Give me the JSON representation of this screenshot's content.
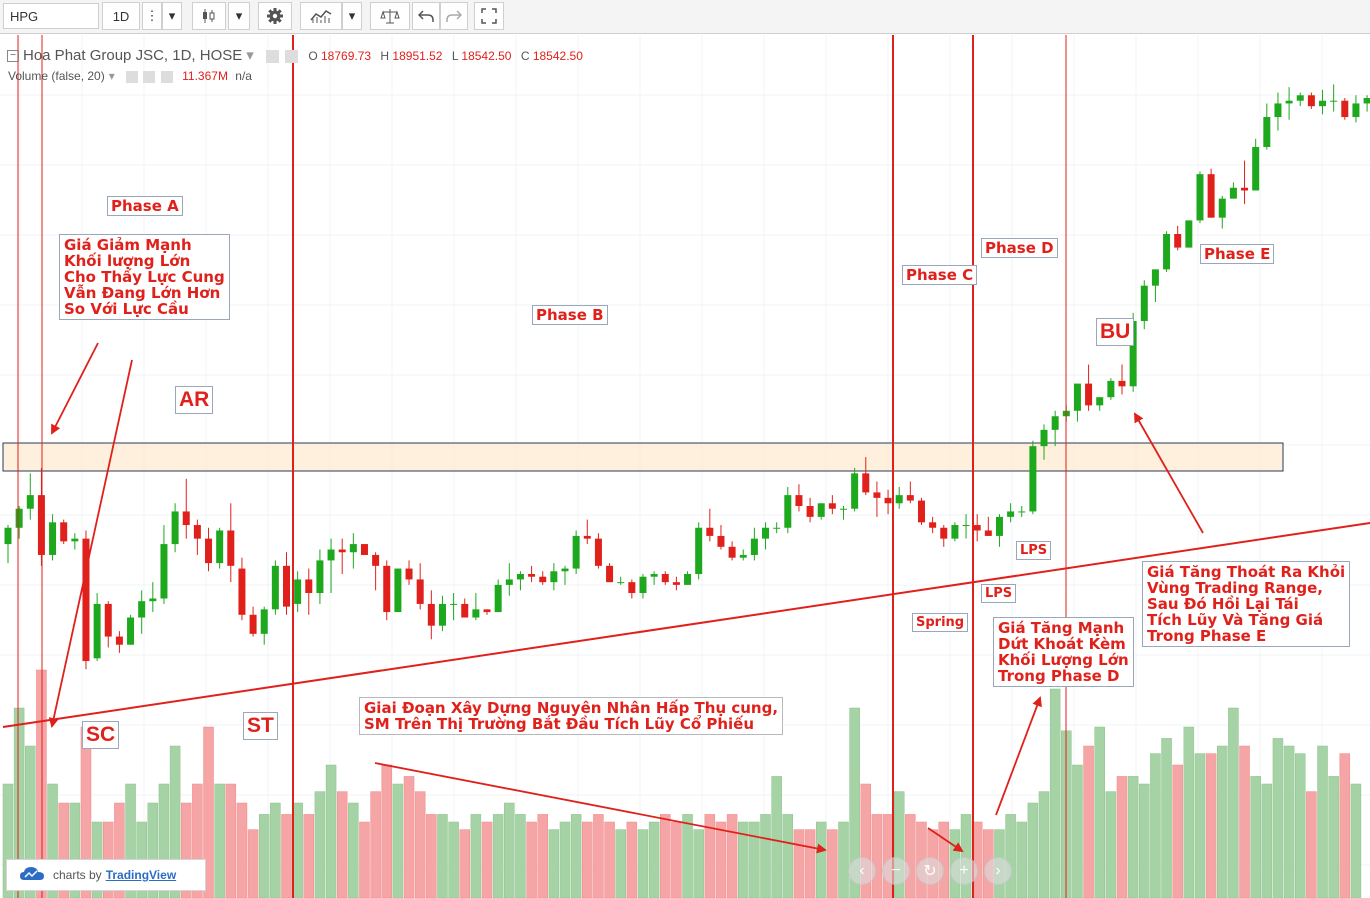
{
  "toolbar": {
    "symbol": "HPG",
    "interval": "1D",
    "more": "⋮",
    "dropdown": "▾"
  },
  "header": {
    "title": "Hoa Phat Group JSC, 1D, HOSE",
    "ohlc": {
      "o_label": "O",
      "o": "18769.73",
      "h_label": "H",
      "h": "18951.52",
      "l_label": "L",
      "l": "18542.50",
      "c_label": "C",
      "c": "18542.50"
    },
    "volume_label": "Volume (false, 20)",
    "volume_value": "11.367M",
    "volume_ma": "n/a"
  },
  "annotations": {
    "phase_a": "Phase A",
    "phase_a_note": "Giá Giảm Mạnh\nKhối lượng Lớn\nCho Thấy Lực Cung\nVẫn Đang Lớn Hơn\nSo Với Lực Cầu",
    "ar": "AR",
    "phase_b": "Phase B",
    "phase_c": "Phase C",
    "phase_d": "Phase D",
    "phase_e": "Phase E",
    "bu": "BU",
    "sc": "SC",
    "st": "ST",
    "lps1": "LPS",
    "lps2": "LPS",
    "spring": "Spring",
    "phase_b_note": "Giai Đoạn Xây Dựng Nguyên Nhân Hấp Thụ cung,\nSM Trên Thị Trường Bắt Đầu Tích Lũy Cổ Phiếu",
    "phase_d_note": "Giá Tăng Mạnh\nDứt Khoát Kèm\nKhối Lượng Lớn\nTrong Phase D",
    "phase_e_note": "Giá Tăng Thoát Ra Khỏi\nVùng Trading Range,\nSau Đó Hồi Lại Tái\nTích Lũy Và Tăng Giá\nTrong Phase E"
  },
  "footer": {
    "charts_by": "charts by",
    "tradingview": "TradingView"
  },
  "nav": [
    "‹",
    "−",
    "↻",
    "+",
    "›"
  ],
  "colors": {
    "up": "#1ea81e",
    "down": "#e0211b",
    "vol_up": "#a6d3a6",
    "vol_down": "#f5a5a5",
    "annotation": "#e0211b",
    "zone_fill": "#fdebd0"
  },
  "chart_data": {
    "type": "candlestick",
    "symbol": "HPG",
    "interval": "1D",
    "exchange": "HOSE",
    "candles": [
      [
        19050,
        19400,
        18700,
        19350
      ],
      [
        19350,
        19750,
        19150,
        19700
      ],
      [
        19700,
        20350,
        19500,
        19950
      ],
      [
        19950,
        20450,
        18650,
        18850
      ],
      [
        18850,
        19600,
        18750,
        19450
      ],
      [
        19450,
        19500,
        19050,
        19100
      ],
      [
        19100,
        19250,
        18950,
        19150
      ],
      [
        19150,
        19300,
        16750,
        16900
      ],
      [
        16950,
        18150,
        16900,
        17950
      ],
      [
        17950,
        18000,
        17150,
        17350
      ],
      [
        17350,
        17450,
        17050,
        17200
      ],
      [
        17200,
        17750,
        17200,
        17700
      ],
      [
        17700,
        18200,
        17400,
        18000
      ],
      [
        18000,
        18350,
        17800,
        18050
      ],
      [
        18050,
        19400,
        17950,
        19050
      ],
      [
        19050,
        19800,
        18900,
        19650
      ],
      [
        19650,
        20250,
        19150,
        19400
      ],
      [
        19400,
        19500,
        18850,
        19150
      ],
      [
        19150,
        19350,
        18550,
        18700
      ],
      [
        18700,
        19350,
        18600,
        19300
      ],
      [
        19300,
        19800,
        18350,
        18650
      ],
      [
        18600,
        18800,
        17650,
        17750
      ],
      [
        17750,
        17900,
        17350,
        17400
      ],
      [
        17400,
        17900,
        17200,
        17850
      ],
      [
        17850,
        18750,
        17750,
        18650
      ],
      [
        18650,
        18900,
        17750,
        17900
      ],
      [
        17950,
        18550,
        17800,
        18400
      ],
      [
        18400,
        18600,
        17750,
        18150
      ],
      [
        18150,
        18950,
        17950,
        18750
      ],
      [
        18750,
        19150,
        18150,
        18950
      ],
      [
        18950,
        19150,
        18500,
        18900
      ],
      [
        18900,
        19250,
        18600,
        19050
      ],
      [
        19050,
        19050,
        18850,
        18850
      ],
      [
        18850,
        18900,
        18200,
        18650
      ],
      [
        18650,
        18750,
        17650,
        17800
      ],
      [
        17800,
        18600,
        17800,
        18600
      ],
      [
        18600,
        18750,
        18300,
        18400
      ],
      [
        18400,
        18700,
        17850,
        17950
      ],
      [
        17950,
        18200,
        17300,
        17550
      ],
      [
        17550,
        18100,
        17450,
        17950
      ],
      [
        17950,
        18150,
        17650,
        17950
      ],
      [
        17950,
        18050,
        17700,
        17700
      ],
      [
        17700,
        18150,
        17650,
        17850
      ],
      [
        17850,
        17850,
        17750,
        17800
      ],
      [
        17800,
        18400,
        17800,
        18300
      ],
      [
        18300,
        18700,
        18100,
        18400
      ],
      [
        18400,
        18550,
        18200,
        18500
      ],
      [
        18500,
        18650,
        18350,
        18450
      ],
      [
        18450,
        18550,
        18300,
        18350
      ],
      [
        18350,
        18700,
        18200,
        18550
      ],
      [
        18550,
        18650,
        18300,
        18600
      ],
      [
        18600,
        19300,
        18500,
        19200
      ],
      [
        19200,
        19500,
        19050,
        19150
      ],
      [
        19150,
        19250,
        18600,
        18650
      ],
      [
        18650,
        18700,
        18350,
        18350
      ],
      [
        18350,
        18450,
        18300,
        18350
      ],
      [
        18350,
        18400,
        18050,
        18150
      ],
      [
        18150,
        18500,
        18050,
        18450
      ],
      [
        18450,
        18550,
        18300,
        18500
      ],
      [
        18500,
        18550,
        18300,
        18350
      ],
      [
        18350,
        18450,
        18200,
        18300
      ],
      [
        18300,
        18550,
        18300,
        18500
      ],
      [
        18500,
        19450,
        18400,
        19350
      ],
      [
        19350,
        19700,
        19100,
        19200
      ],
      [
        19200,
        19400,
        18950,
        19000
      ],
      [
        19000,
        19100,
        18750,
        18800
      ],
      [
        18800,
        18950,
        18750,
        18850
      ],
      [
        18850,
        19350,
        18750,
        19150
      ],
      [
        19150,
        19450,
        18950,
        19350
      ],
      [
        19350,
        19450,
        19250,
        19350
      ],
      [
        19350,
        20100,
        19250,
        19950
      ],
      [
        19950,
        20150,
        19650,
        19750
      ],
      [
        19750,
        19900,
        19450,
        19550
      ],
      [
        19550,
        19800,
        19500,
        19800
      ],
      [
        19800,
        19950,
        19600,
        19700
      ],
      [
        19700,
        19750,
        19500,
        19700
      ],
      [
        19700,
        20450,
        19650,
        20350
      ],
      [
        20350,
        20650,
        19950,
        20000
      ],
      [
        20000,
        20200,
        19550,
        19900
      ],
      [
        19900,
        20050,
        19600,
        19800
      ],
      [
        19800,
        20100,
        19700,
        19950
      ],
      [
        19950,
        20200,
        19800,
        19850
      ],
      [
        19850,
        19900,
        19400,
        19450
      ],
      [
        19450,
        19550,
        19250,
        19350
      ],
      [
        19350,
        19400,
        19000,
        19150
      ],
      [
        19150,
        19450,
        19100,
        19400
      ],
      [
        19400,
        19600,
        19150,
        19400
      ],
      [
        19400,
        19600,
        19100,
        19300
      ],
      [
        19300,
        19550,
        19200,
        19200
      ],
      [
        19200,
        19600,
        19000,
        19550
      ],
      [
        19550,
        19800,
        19450,
        19650
      ],
      [
        19650,
        19750,
        19550,
        19650
      ],
      [
        19650,
        20950,
        19600,
        20850
      ],
      [
        20850,
        21250,
        20600,
        21150
      ],
      [
        21150,
        21500,
        20850,
        21400
      ],
      [
        21400,
        21600,
        21300,
        21500
      ],
      [
        21500,
        22000,
        21300,
        22000
      ],
      [
        22000,
        22350,
        21500,
        21600
      ],
      [
        21600,
        21750,
        21500,
        21750
      ],
      [
        21750,
        22100,
        21700,
        22050
      ],
      [
        22050,
        22350,
        21800,
        21950
      ],
      [
        21950,
        23300,
        21850,
        23150
      ],
      [
        23150,
        23900,
        23000,
        23800
      ],
      [
        23800,
        24100,
        23500,
        24100
      ],
      [
        24100,
        24800,
        24050,
        24750
      ],
      [
        24750,
        24900,
        24450,
        24500
      ],
      [
        24500,
        25000,
        24500,
        25000
      ],
      [
        25000,
        25900,
        24950,
        25850
      ],
      [
        25850,
        25950,
        25050,
        25050
      ],
      [
        25050,
        25450,
        24850,
        25400
      ],
      [
        25400,
        25700,
        25400,
        25600
      ],
      [
        25600,
        26100,
        25300,
        25550
      ],
      [
        25550,
        26500,
        25550,
        26350
      ],
      [
        26350,
        27150,
        26300,
        26900
      ],
      [
        26900,
        27350,
        26650,
        27150
      ],
      [
        27150,
        27450,
        26850,
        27200
      ],
      [
        27200,
        27350,
        27100,
        27300
      ],
      [
        27300,
        27350,
        27050,
        27100
      ],
      [
        27100,
        27400,
        26950,
        27200
      ],
      [
        27200,
        27500,
        27000,
        27200
      ],
      [
        27200,
        27250,
        26850,
        26900
      ],
      [
        26900,
        27300,
        26800,
        27150
      ],
      [
        27150,
        27300,
        27000,
        27250
      ]
    ],
    "volume": [
      30,
      50,
      40,
      60,
      30,
      25,
      25,
      45,
      20,
      20,
      25,
      30,
      20,
      25,
      30,
      40,
      25,
      30,
      45,
      30,
      30,
      25,
      18,
      22,
      25,
      22,
      25,
      22,
      28,
      35,
      28,
      25,
      20,
      28,
      35,
      30,
      32,
      28,
      22,
      22,
      20,
      18,
      22,
      20,
      22,
      25,
      22,
      20,
      22,
      18,
      20,
      22,
      20,
      22,
      20,
      18,
      20,
      18,
      20,
      22,
      20,
      22,
      18,
      22,
      20,
      22,
      20,
      20,
      22,
      32,
      22,
      18,
      18,
      20,
      18,
      20,
      50,
      30,
      22,
      22,
      28,
      22,
      20,
      18,
      20,
      18,
      22,
      20,
      18,
      18,
      22,
      20,
      25,
      28,
      55,
      44,
      35,
      40,
      45,
      28,
      32,
      32,
      30,
      38,
      42,
      35,
      45,
      38,
      38,
      40,
      50,
      40,
      32,
      30,
      42,
      40,
      38,
      28,
      40,
      32,
      38,
      30
    ]
  }
}
